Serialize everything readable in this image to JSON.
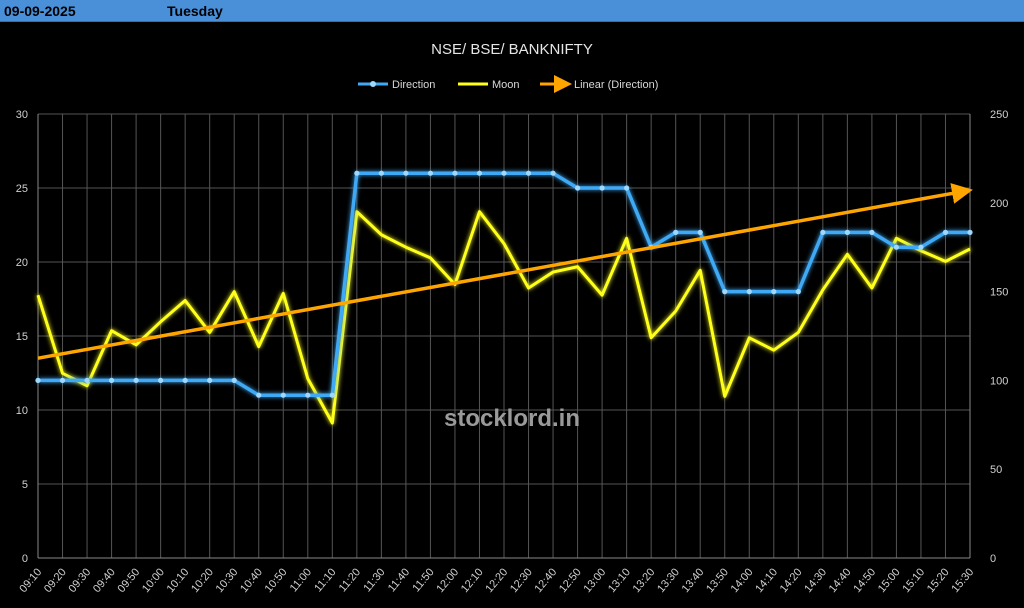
{
  "header": {
    "date": "09-09-2025",
    "day": "Tuesday"
  },
  "watermark": "stocklord.in",
  "colors": {
    "direction": "#3fa9f5",
    "moon": "#ffff1a",
    "trend": "#ffa500",
    "grid": "#555555",
    "header_bg": "#4a90d9"
  },
  "chart_data": {
    "type": "line",
    "title": "NSE/ BSE/ BANKNIFTY",
    "categories": [
      "09:10",
      "09:20",
      "09:30",
      "09:40",
      "09:50",
      "10:00",
      "10:10",
      "10:20",
      "10:30",
      "10:40",
      "10:50",
      "11:00",
      "11:10",
      "11:20",
      "11:30",
      "11:40",
      "11:50",
      "12:00",
      "12:10",
      "12:20",
      "12:30",
      "12:40",
      "12:50",
      "13:00",
      "13:10",
      "13:20",
      "13:30",
      "13:40",
      "13:50",
      "14:00",
      "14:10",
      "14:20",
      "14:30",
      "14:40",
      "14:50",
      "15:00",
      "15:10",
      "15:20",
      "15:30"
    ],
    "y_left": {
      "min": 0,
      "max": 30,
      "ticks": [
        0,
        5,
        10,
        15,
        20,
        25,
        30
      ]
    },
    "y_right": {
      "min": 0,
      "max": 250,
      "ticks": [
        0,
        50,
        100,
        150,
        200,
        250
      ]
    },
    "grid": true,
    "legend_position": "top",
    "series": [
      {
        "name": "Direction",
        "axis": "left",
        "values": [
          12,
          12,
          12,
          12,
          12,
          12,
          12,
          12,
          12,
          11,
          11,
          11,
          11,
          26,
          26,
          26,
          26,
          26,
          26,
          26,
          26,
          26,
          25,
          25,
          25,
          21,
          22,
          22,
          18,
          18,
          18,
          18,
          22,
          22,
          22,
          21,
          21,
          22,
          22
        ]
      },
      {
        "name": "Moon",
        "axis": "right",
        "values": [
          148,
          104,
          97,
          128,
          120,
          133,
          145,
          127,
          150,
          119,
          149,
          101,
          76,
          195,
          182,
          175,
          169,
          154,
          195,
          177,
          152,
          161,
          164,
          148,
          180,
          124,
          139,
          162,
          91,
          124,
          117,
          127,
          151,
          171,
          152,
          180,
          173,
          167,
          174
        ]
      },
      {
        "name": "Linear (Direction)",
        "axis": "left",
        "trend": [
          13.5,
          24.8
        ]
      }
    ]
  }
}
